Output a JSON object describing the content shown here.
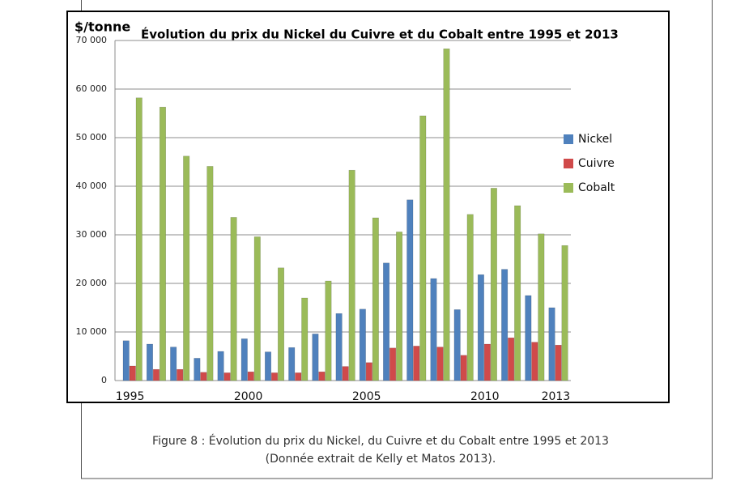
{
  "chart_data": {
    "type": "bar",
    "title": "Évolution du prix du Nickel du Cuivre et du Cobalt entre 1995 et 2013",
    "y_label": "$/tonne",
    "caption": [
      "Figure 8 : Évolution du prix du Nickel, du Cuivre et du Cobalt entre 1995 et 2013",
      "(Donnée extrait de Kelly et Matos 2013)."
    ],
    "categories": [
      "1995",
      null,
      null,
      null,
      null,
      "2000",
      null,
      null,
      null,
      null,
      "2005",
      null,
      null,
      null,
      null,
      "2010",
      null,
      null,
      "2013"
    ],
    "series": [
      {
        "name": "Nickel",
        "color": "#4f81bd",
        "values": [
          8200,
          7500,
          6900,
          4600,
          6000,
          8600,
          5900,
          6800,
          9600,
          13800,
          14700,
          24200,
          37200,
          21000,
          14600,
          21800,
          22900,
          17500,
          15000
        ]
      },
      {
        "name": "Cuivre",
        "color": "#d04a4a",
        "values": [
          3000,
          2300,
          2300,
          1700,
          1600,
          1800,
          1600,
          1600,
          1800,
          2900,
          3700,
          6700,
          7100,
          6900,
          5200,
          7500,
          8800,
          7900,
          7300
        ]
      },
      {
        "name": "Cobalt",
        "color": "#9bbb59",
        "values": [
          58200,
          56300,
          46200,
          44100,
          33600,
          29600,
          23200,
          17000,
          20500,
          43300,
          33500,
          30600,
          54500,
          68300,
          34200,
          39600,
          36000,
          30200,
          27800
        ]
      }
    ],
    "ylim": [
      0,
      70000
    ],
    "yticks": [
      0,
      {
        "value": 10000,
        "label": "10 000"
      },
      {
        "value": 20000,
        "label": "20 000"
      },
      {
        "value": 30000,
        "label": "30 000"
      },
      {
        "value": 40000,
        "label": "40 000"
      },
      {
        "value": 50000,
        "label": "50 000"
      },
      {
        "value": 60000,
        "label": "60 000"
      },
      {
        "value": 70000,
        "label": "70 000"
      }
    ],
    "grid": true,
    "legend": "right"
  }
}
